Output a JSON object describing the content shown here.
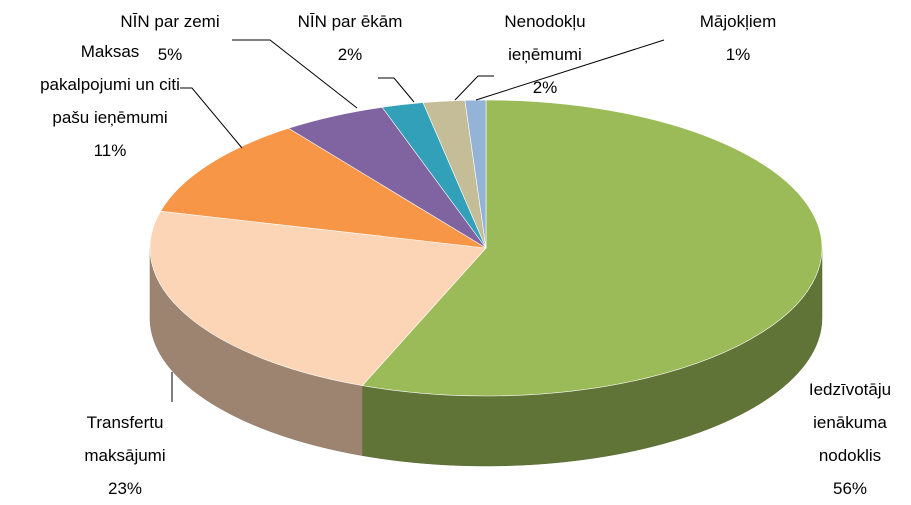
{
  "chart_data": {
    "type": "pie3d",
    "categories": [
      "Iedzīvotāju ienākuma nodoklis",
      "Transfertu maksājumi",
      "Maksas pakalpojumi un citi pašu ieņēmumi",
      "NĪN par zemi",
      "NĪN par ēkām",
      "Nenodokļu ieņēmumi",
      "Mājokļiem"
    ],
    "values": [
      56,
      23,
      11,
      5,
      2,
      2,
      1
    ],
    "value_labels": [
      "56%",
      "23%",
      "11%",
      "5%",
      "2%",
      "2%",
      "1%"
    ],
    "colors": [
      "#9bbb59",
      "#fbd5b5",
      "#f79646",
      "#8064a2",
      "#31a0b8",
      "#c4bd97",
      "#95b3d7"
    ]
  }
}
